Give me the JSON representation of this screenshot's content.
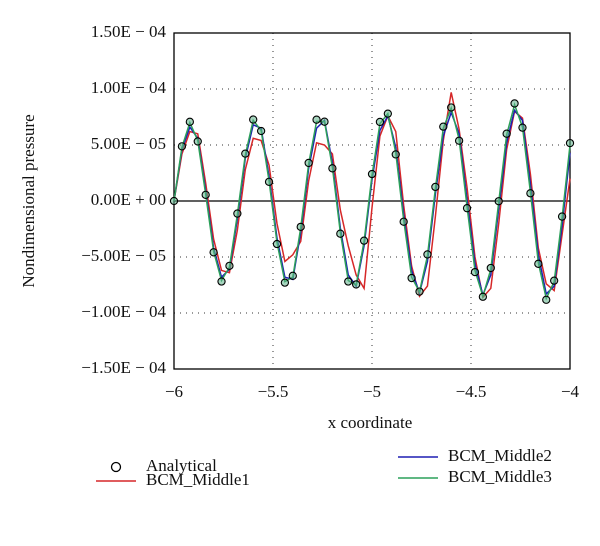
{
  "chart_data": {
    "type": "line",
    "xlabel": "x coordinate",
    "ylabel": "Nondimensional pressure",
    "xlim": [
      -6,
      -4
    ],
    "ylim": [
      -0.00015,
      0.00015
    ],
    "xticks": [
      {
        "value": -6,
        "label": "−6"
      },
      {
        "value": -5.5,
        "label": "−5.5"
      },
      {
        "value": -5,
        "label": "−5"
      },
      {
        "value": -4.5,
        "label": "−4.5"
      },
      {
        "value": -4,
        "label": "−4"
      }
    ],
    "yticks": [
      {
        "value": 0.00015,
        "label": "1.50E − 04"
      },
      {
        "value": 0.0001,
        "label": "1.00E − 04"
      },
      {
        "value": 5e-05,
        "label": "5.00E − 05"
      },
      {
        "value": 0,
        "label": "0.00E + 00"
      },
      {
        "value": -5e-05,
        "label": "−5.00E − 05"
      },
      {
        "value": -0.0001,
        "label": "−1.00E − 04"
      },
      {
        "value": -0.00015,
        "label": "−1.50E − 04"
      }
    ],
    "grid": true,
    "x": [
      -6,
      -5.96,
      -5.92,
      -5.88,
      -5.84,
      -5.8,
      -5.76,
      -5.72,
      -5.68,
      -5.64,
      -5.6,
      -5.56,
      -5.52,
      -5.48,
      -5.44,
      -5.4,
      -5.36,
      -5.32,
      -5.28,
      -5.24,
      -5.2,
      -5.16,
      -5.12,
      -5.08,
      -5.04,
      -5,
      -4.96,
      -4.92,
      -4.88,
      -4.84,
      -4.8,
      -4.76,
      -4.72,
      -4.68,
      -4.64,
      -4.6,
      -4.56,
      -4.52,
      -4.48,
      -4.44,
      -4.4,
      -4.36,
      -4.32,
      -4.28,
      -4.24,
      -4.2,
      -4.16,
      -4.12,
      -4.08,
      -4.04,
      -4
    ],
    "series": [
      {
        "name": "Analytical",
        "color": "#000000",
        "marker": "circle",
        "values": [
          0,
          4.88e-05,
          7.07e-05,
          5.32e-05,
          5.5e-06,
          -4.58e-05,
          -7.19e-05,
          -5.79e-05,
          -1.12e-05,
          4.23e-05,
          7.27e-05,
          6.25e-05,
          1.71e-05,
          -3.84e-05,
          -7.29e-05,
          -6.68e-05,
          -2.31e-05,
          3.4e-05,
          7.26e-05,
          7.08e-05,
          2.92e-05,
          -2.92e-05,
          -7.19e-05,
          -7.45e-05,
          -3.54e-05,
          2.41e-05,
          7.06e-05,
          7.8e-05,
          4.16e-05,
          -1.85e-05,
          -6.88e-05,
          -8.09e-05,
          -4.77e-05,
          1.26e-05,
          6.64e-05,
          8.35e-05,
          5.38e-05,
          -6.4e-06,
          -6.35e-05,
          -8.55e-05,
          -5.98e-05,
          -2e-07,
          6.01e-05,
          8.71e-05,
          6.55e-05,
          6.9e-06,
          -5.61e-05,
          -8.82e-05,
          -7.11e-05,
          -1.39e-05,
          5.17e-05
        ]
      },
      {
        "name": "BCM_Middle1",
        "color": "#d62728",
        "values": [
          0,
          4.2e-05,
          6.2e-05,
          6e-05,
          1.6e-05,
          -3.4e-05,
          -6.2e-05,
          -6.4e-05,
          -2.6e-05,
          2.8e-05,
          5.6e-05,
          5.4e-05,
          3.2e-05,
          -2e-05,
          -5.4e-05,
          -4.8e-05,
          -3.6e-05,
          1.8e-05,
          5.2e-05,
          5e-05,
          4.2e-05,
          -8e-06,
          -4e-05,
          -6.6e-05,
          -7.8e-05,
          -6e-06,
          5.8e-05,
          7.6e-05,
          6.2e-05,
          -4e-06,
          -5.8e-05,
          -8.5e-05,
          -7.6e-05,
          -1.4e-05,
          5.4e-05,
          9.7e-05,
          6.4e-05,
          1.2e-05,
          -5e-05,
          -8.6e-05,
          -7.8e-05,
          -2e-05,
          4.6e-05,
          8e-05,
          7.4e-05,
          2.4e-05,
          -4.2e-05,
          -7.4e-05,
          -8e-05,
          -3e-05,
          2e-05
        ]
      },
      {
        "name": "BCM_Middle2",
        "color": "#1f1fb4",
        "values": [
          0,
          4.6e-05,
          6.6e-05,
          5.6e-05,
          9e-06,
          -4.2e-05,
          -6.8e-05,
          -6.1e-05,
          -1.6e-05,
          3.8e-05,
          6.8e-05,
          6.5e-05,
          2.2e-05,
          -3.3e-05,
          -6.8e-05,
          -7e-05,
          -2.8e-05,
          2.9e-05,
          6.5e-05,
          7.2e-05,
          3.4e-05,
          -2.4e-05,
          -6.6e-05,
          -7.6e-05,
          -4e-05,
          1.9e-05,
          6.3e-05,
          7.6e-05,
          4.8e-05,
          -1.2e-05,
          -6.2e-05,
          -8.2e-05,
          -5.4e-05,
          6e-06,
          5.8e-05,
          7.9e-05,
          6e-05,
          1e-06,
          -5.6e-05,
          -8.4e-05,
          -6.6e-05,
          -7e-06,
          5.2e-05,
          8.1e-05,
          7.2e-05,
          1.5e-05,
          -4.8e-05,
          -8.3e-05,
          -7.6e-05,
          -2.2e-05,
          4.3e-05
        ]
      },
      {
        "name": "BCM_Middle3",
        "color": "#2ca05a",
        "values": [
          0,
          4.8e-05,
          7e-05,
          5.4e-05,
          6e-06,
          -4.5e-05,
          -7.1e-05,
          -5.9e-05,
          -1.2e-05,
          4.1e-05,
          7.2e-05,
          6.3e-05,
          1.8e-05,
          -3.7e-05,
          -7.2e-05,
          -6.8e-05,
          -2.4e-05,
          3.3e-05,
          7.1e-05,
          7.1e-05,
          3e-05,
          -2.8e-05,
          -7.1e-05,
          -7.5e-05,
          -3.6e-05,
          2.3e-05,
          6.9e-05,
          7.8e-05,
          4.3e-05,
          -1.7e-05,
          -6.8e-05,
          -8.1e-05,
          -4.9e-05,
          1.1e-05,
          6.5e-05,
          8.3e-05,
          5.5e-05,
          -5e-06,
          -6.2e-05,
          -8.5e-05,
          -6.1e-05,
          -1e-06,
          5.9e-05,
          8.6e-05,
          6.6e-05,
          8e-06,
          -5.5e-05,
          -8.7e-05,
          -7.2e-05,
          -1.5e-05,
          5e-05
        ]
      }
    ]
  }
}
